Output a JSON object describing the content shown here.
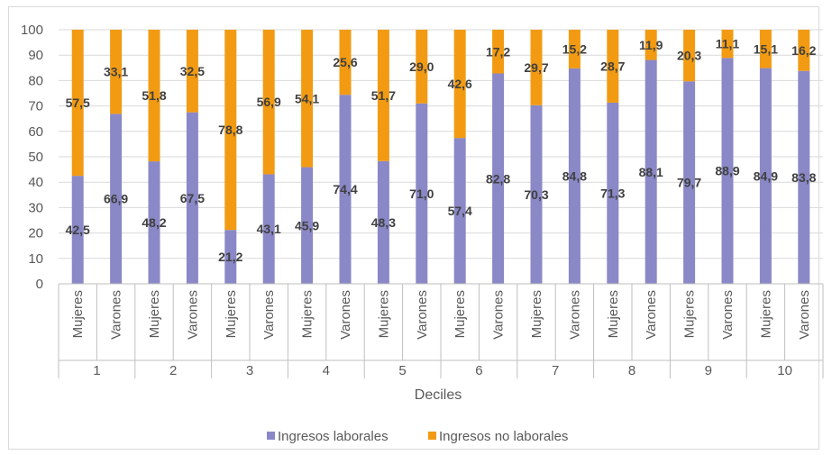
{
  "chart_data": {
    "type": "bar",
    "stacked": true,
    "xlabel": "Deciles",
    "ylabel": "",
    "ylim": [
      0,
      100
    ],
    "yticks": [
      0,
      10,
      20,
      30,
      40,
      50,
      60,
      70,
      80,
      90,
      100
    ],
    "grid": true,
    "legend_position": "bottom",
    "groups": [
      "1",
      "2",
      "3",
      "4",
      "5",
      "6",
      "7",
      "8",
      "9",
      "10"
    ],
    "subcategories": [
      "Mujeres",
      "Varones"
    ],
    "categories": [
      "1 Mujeres",
      "1 Varones",
      "2 Mujeres",
      "2 Varones",
      "3 Mujeres",
      "3 Varones",
      "4 Mujeres",
      "4 Varones",
      "5 Mujeres",
      "5 Varones",
      "6 Mujeres",
      "6 Varones",
      "7 Mujeres",
      "7 Varones",
      "8 Mujeres",
      "8 Varones",
      "9 Mujeres",
      "9 Varones",
      "10 Mujeres",
      "10 Varones"
    ],
    "series": [
      {
        "name": "Ingresos laborales",
        "color": "#8a88c6",
        "values": [
          42.5,
          66.9,
          48.2,
          67.5,
          21.2,
          43.1,
          45.9,
          74.4,
          48.3,
          71.0,
          57.4,
          82.8,
          70.3,
          84.8,
          71.3,
          88.1,
          79.7,
          88.9,
          84.9,
          83.8
        ],
        "labels": [
          "42,5",
          "66,9",
          "48,2",
          "67,5",
          "21,2",
          "43,1",
          "45,9",
          "74,4",
          "48,3",
          "71,0",
          "57,4",
          "82,8",
          "70,3",
          "84,8",
          "71,3",
          "88,1",
          "79,7",
          "88,9",
          "84,9",
          "83,8"
        ]
      },
      {
        "name": "Ingresos no laborales",
        "color": "#f29b12",
        "values": [
          57.5,
          33.1,
          51.8,
          32.5,
          78.8,
          56.9,
          54.1,
          25.6,
          51.7,
          29.0,
          42.6,
          17.2,
          29.7,
          15.2,
          28.7,
          11.9,
          20.3,
          11.1,
          15.1,
          16.2
        ],
        "labels": [
          "57,5",
          "33,1",
          "51,8",
          "32,5",
          "78,8",
          "56,9",
          "54,1",
          "25,6",
          "51,7",
          "29,0",
          "42,6",
          "17,2",
          "29,7",
          "15,2",
          "28,7",
          "11,9",
          "20,3",
          "11,1",
          "15,1",
          "16,2"
        ]
      }
    ]
  }
}
